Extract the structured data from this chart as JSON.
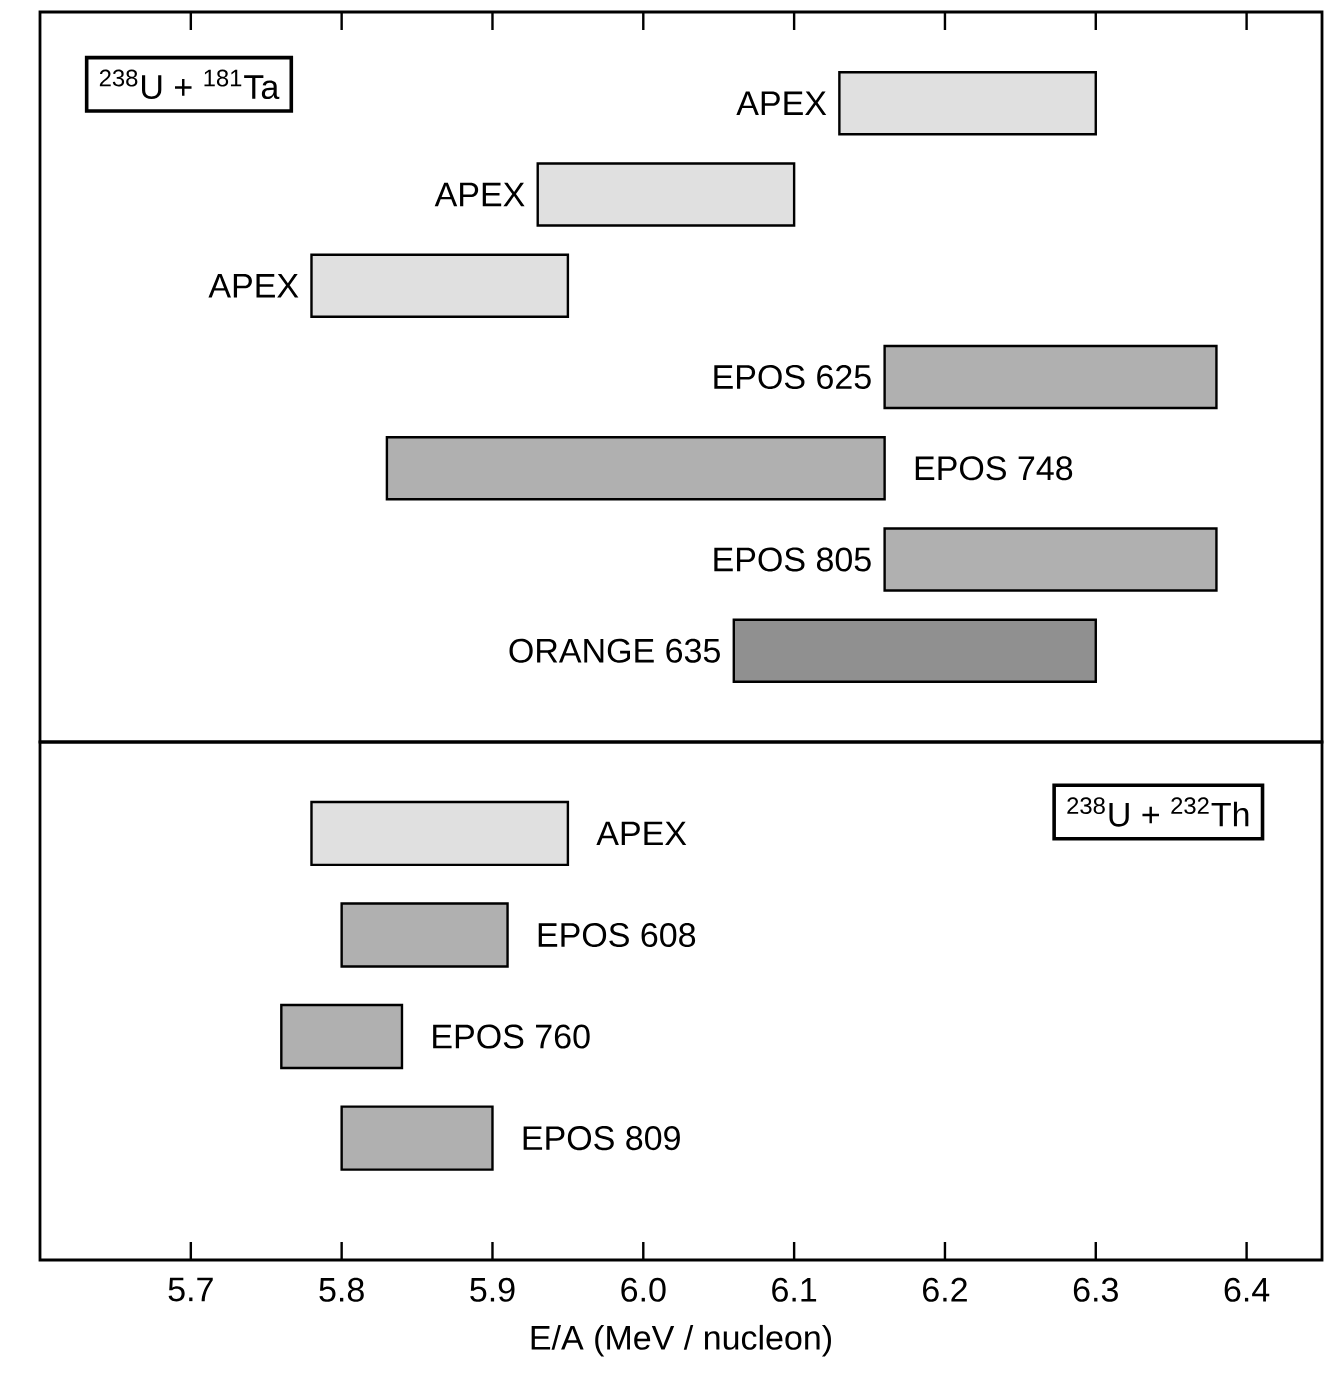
{
  "chart_data": [
    {
      "type": "bar",
      "orientation": "horizontal",
      "categories": [
        "APEX",
        "APEX",
        "APEX",
        "EPOS 625",
        "EPOS 748",
        "EPOS 805",
        "ORANGE 635"
      ],
      "base": [
        6.13,
        5.93,
        5.78,
        6.16,
        5.83,
        6.16,
        6.06
      ],
      "values": [
        0.17,
        0.17,
        0.17,
        0.22,
        0.33,
        0.22,
        0.24
      ],
      "colors": [
        "#e0e0e0",
        "#e0e0e0",
        "#e0e0e0",
        "#b0b0b0",
        "#b0b0b0",
        "#b0b0b0",
        "#909090"
      ],
      "xlim": [
        5.6,
        6.45
      ],
      "xticks": [
        5.7,
        5.8,
        5.9,
        6,
        6.1,
        6.2,
        6.3,
        6.4
      ],
      "tick_labels": false,
      "annotations": [
        "$^{238}$U + $^{181}$Ta"
      ]
    },
    {
      "type": "bar",
      "orientation": "horizontal",
      "categories": [
        "APEX",
        "EPOS 608",
        "EPOS 760",
        "EPOS 809"
      ],
      "base": [
        5.78,
        5.8,
        5.76,
        5.8
      ],
      "values": [
        0.17,
        0.11,
        0.08,
        0.1
      ],
      "colors": [
        "#e0e0e0",
        "#b0b0b0",
        "#b0b0b0",
        "#b0b0b0"
      ],
      "xlim": [
        5.6,
        6.45
      ],
      "xticks": [
        5.7,
        5.8,
        5.9,
        {
          "value": 6,
          "label": "6.0"
        },
        6.1,
        6.2,
        6.3,
        6.4
      ],
      "xlabel": "E/A  (MeV / nucleon)",
      "annotations": [
        "$^{238}$U + $^{232}$Th"
      ]
    }
  ]
}
